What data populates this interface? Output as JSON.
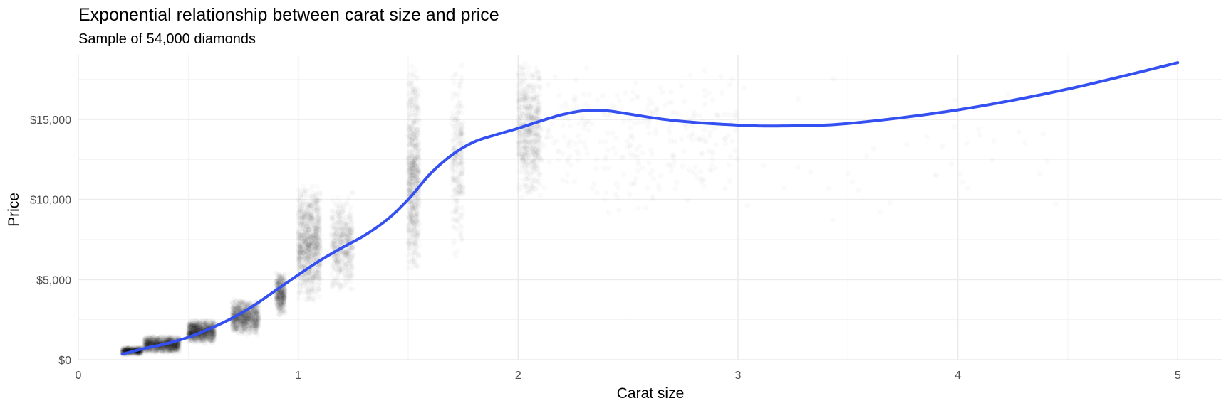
{
  "chart_data": {
    "type": "scatter",
    "title": "Exponential relationship between carat size and price",
    "subtitle": "Sample of 54,000 diamonds",
    "xlabel": "Carat size",
    "ylabel": "Price",
    "xlim": [
      0,
      5.2
    ],
    "ylim": [
      0,
      19000
    ],
    "x_ticks": [
      0,
      1,
      2,
      3,
      4,
      5
    ],
    "x_tick_labels": [
      "0",
      "1",
      "2",
      "3",
      "4",
      "5"
    ],
    "y_ticks": [
      0,
      5000,
      10000,
      15000
    ],
    "y_tick_labels": [
      "$0",
      "$5,000",
      "$10,000",
      "$15,000"
    ],
    "grid": true,
    "legend": "none",
    "colors": {
      "points": "#000000",
      "smooth": "#3450f0"
    },
    "point_alpha": 0.02,
    "scatter_clusters": [
      {
        "carat_range": [
          0.2,
          0.29
        ],
        "price_range": [
          300,
          800
        ],
        "count": 500
      },
      {
        "carat_range": [
          0.3,
          0.46
        ],
        "price_range": [
          400,
          1500
        ],
        "count": 1100
      },
      {
        "carat_range": [
          0.5,
          0.62
        ],
        "price_range": [
          1000,
          2500
        ],
        "count": 1000
      },
      {
        "carat_range": [
          0.7,
          0.82
        ],
        "price_range": [
          1500,
          3800
        ],
        "count": 900
      },
      {
        "carat_range": [
          0.9,
          0.94
        ],
        "price_range": [
          2700,
          5600
        ],
        "count": 400
      },
      {
        "carat_range": [
          1.0,
          1.1
        ],
        "price_range": [
          3500,
          11000
        ],
        "count": 900
      },
      {
        "carat_range": [
          1.15,
          1.25
        ],
        "price_range": [
          4000,
          10500
        ],
        "count": 450
      },
      {
        "carat_range": [
          1.5,
          1.55
        ],
        "price_range": [
          5000,
          18500
        ],
        "count": 650
      },
      {
        "carat_range": [
          1.7,
          1.75
        ],
        "price_range": [
          6000,
          18500
        ],
        "count": 250
      },
      {
        "carat_range": [
          2.0,
          2.1
        ],
        "price_range": [
          10000,
          18800
        ],
        "count": 550
      },
      {
        "carat_range": [
          2.1,
          3.0
        ],
        "price_range": [
          9000,
          18700
        ],
        "count": 300
      },
      {
        "carat_range": [
          3.0,
          4.5
        ],
        "price_range": [
          8000,
          18500
        ],
        "count": 40
      }
    ],
    "smooth_line": {
      "x": [
        0.2,
        0.3,
        0.4,
        0.5,
        0.6,
        0.7,
        0.8,
        0.9,
        1.0,
        1.1,
        1.2,
        1.3,
        1.4,
        1.5,
        1.6,
        1.7,
        1.8,
        1.9,
        2.0,
        2.1,
        2.2,
        2.3,
        2.4,
        2.5,
        2.7,
        3.0,
        3.2,
        3.5,
        4.0,
        4.5,
        5.0
      ],
      "y": [
        350,
        700,
        1000,
        1400,
        1950,
        2600,
        3400,
        4350,
        5300,
        6200,
        7000,
        7750,
        8700,
        10000,
        11600,
        12800,
        13600,
        14050,
        14450,
        14900,
        15300,
        15550,
        15550,
        15350,
        14950,
        14650,
        14600,
        14750,
        15600,
        16900,
        18550
      ]
    }
  }
}
